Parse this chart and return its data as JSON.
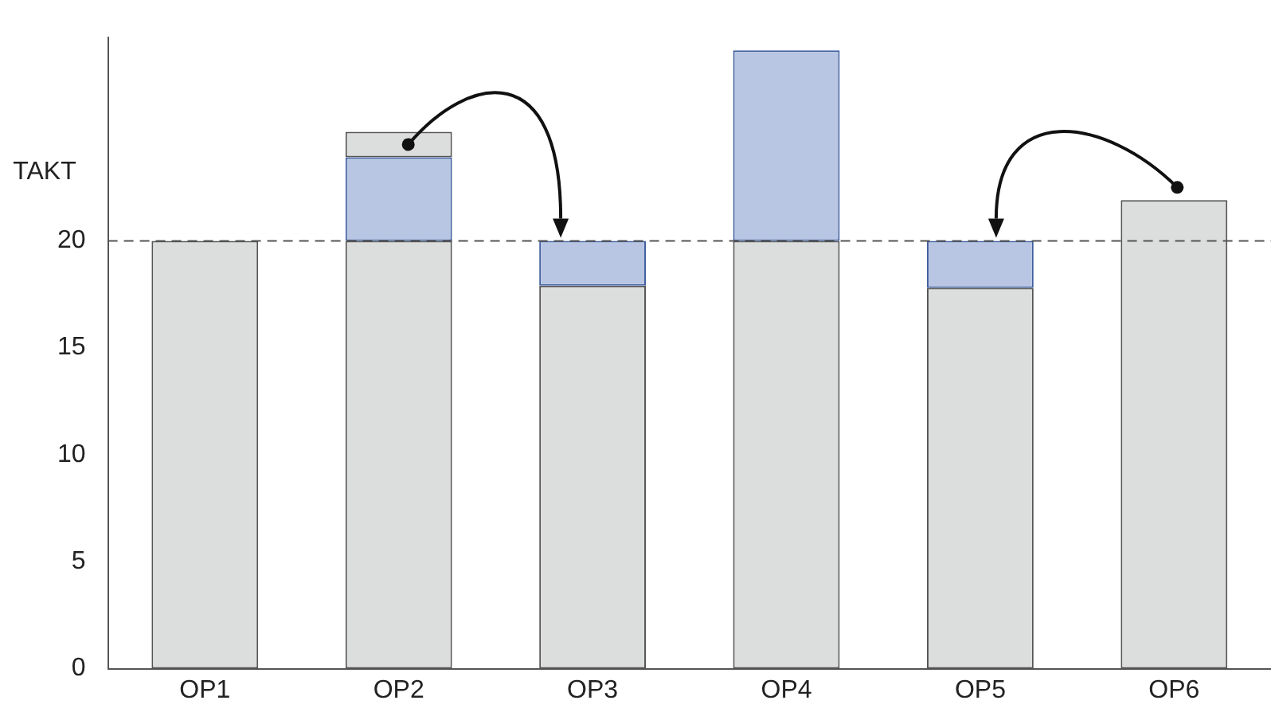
{
  "chart_data": {
    "type": "bar",
    "stacked": true,
    "categories": [
      "OP1",
      "OP2",
      "OP3",
      "OP4",
      "OP5",
      "OP6"
    ],
    "series": [
      {
        "color": "#dcdddd",
        "values": [
          20,
          20,
          17.9,
          20,
          17.8,
          21.9
        ]
      },
      {
        "color": "#b9c6e3",
        "values": [
          null,
          3.9,
          2.1,
          8.9,
          2.2,
          null
        ]
      },
      {
        "color": "#dcdddd",
        "values": [
          null,
          1.2,
          null,
          null,
          null,
          null
        ]
      }
    ],
    "ylim": [
      0,
      29.5
    ],
    "yticks": [
      0,
      5,
      10,
      15,
      20
    ],
    "grid": false,
    "legend": false,
    "ref_lines": [
      {
        "axis": "y",
        "value": 20,
        "label": "TAKT",
        "line_style": "dashed",
        "color": "#555555"
      }
    ]
  }
}
